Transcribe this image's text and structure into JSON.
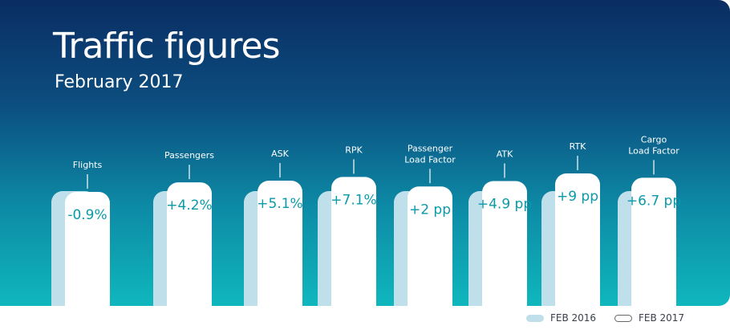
{
  "chart_data": {
    "type": "bar",
    "title": "Traffic figures",
    "subtitle": "February 2017",
    "categories": [
      "Flights",
      "Passengers",
      "ASK",
      "RPK",
      "Passenger\nLoad Factor",
      "ATK",
      "RTK",
      "Cargo\nLoad Factor"
    ],
    "value_labels": [
      "-0.9%",
      "+4.2%",
      "+5.1%",
      "+7.1%",
      "+2 pp",
      "+4.9 pp",
      "+9 pp",
      "+6.7 pp"
    ],
    "values": [
      -0.9,
      4.2,
      5.1,
      7.1,
      2,
      4.9,
      9,
      6.7
    ],
    "series": [
      {
        "name": "FEB 2016",
        "color": "#bfe0ea"
      },
      {
        "name": "FEB 2017",
        "color": "#ffffff"
      }
    ],
    "value_color": "#0a9aa8",
    "legend_position": "bottom-right"
  },
  "legend": {
    "feb2016": "FEB 2016",
    "feb2017": "FEB 2017"
  }
}
